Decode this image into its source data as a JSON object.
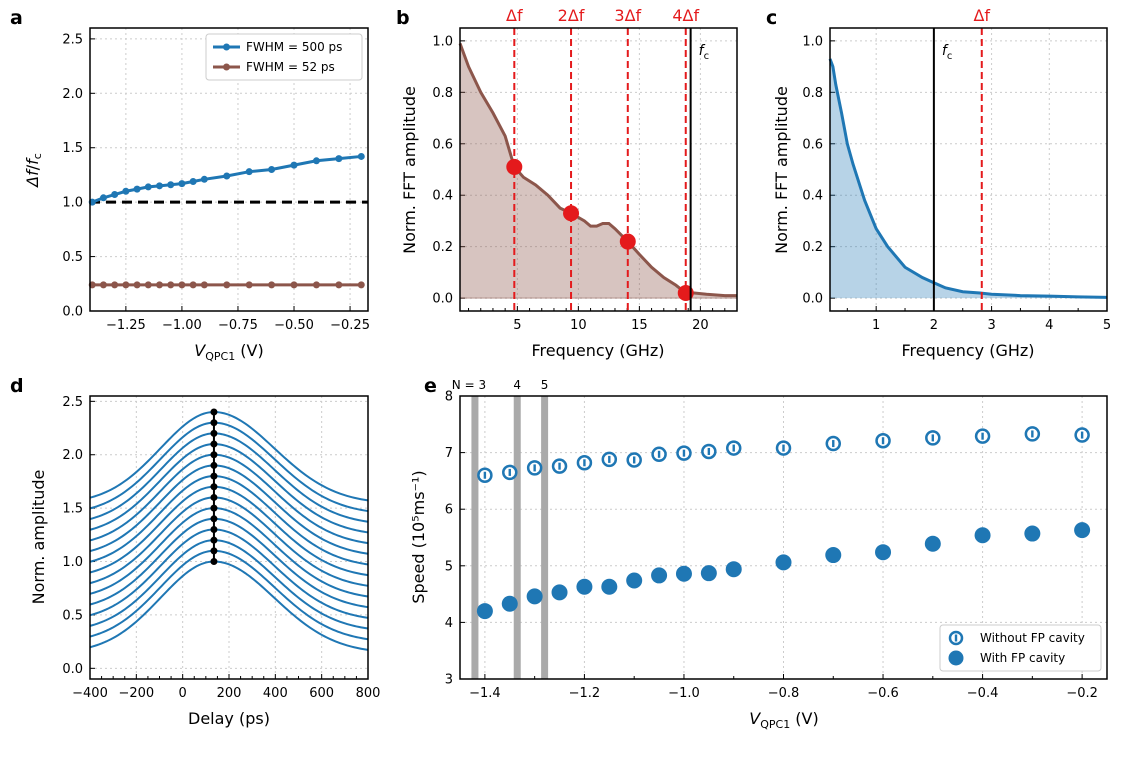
{
  "colors": {
    "blue": "#1f77b4",
    "brown": "#8c564b",
    "red": "#e41a1c",
    "grey": "#aaaaaa",
    "grid": "#cccccc"
  },
  "chart_data": [
    {
      "panel": "a",
      "type": "line",
      "xlabel_main": "V",
      "xlabel_sub": "QPC1",
      "xlabel_unit": " (V)",
      "ylabel": "Δf/f_c",
      "xlim": [
        -1.41,
        -0.17
      ],
      "ylim": [
        0,
        2.6
      ],
      "xticks": [
        -1.25,
        -1.0,
        -0.75,
        -0.5,
        -0.25
      ],
      "xtick_labels": [
        "−1.25",
        "−1.00",
        "−0.75",
        "−0.50",
        "−0.25"
      ],
      "yticks": [
        0,
        0.5,
        1.0,
        1.5,
        2.0,
        2.5
      ],
      "ytick_labels": [
        "0.0",
        "0.5",
        "1.0",
        "1.5",
        "2.0",
        "2.5"
      ],
      "reference_line": 1.0,
      "series": [
        {
          "name": "FWHM = 500 ps",
          "color": "#1f77b4",
          "x": [
            -1.4,
            -1.35,
            -1.3,
            -1.25,
            -1.2,
            -1.15,
            -1.1,
            -1.05,
            -1.0,
            -0.95,
            -0.9,
            -0.8,
            -0.7,
            -0.6,
            -0.5,
            -0.4,
            -0.3,
            -0.2
          ],
          "y": [
            1.0,
            1.04,
            1.07,
            1.1,
            1.12,
            1.14,
            1.15,
            1.16,
            1.17,
            1.19,
            1.21,
            1.24,
            1.28,
            1.3,
            1.34,
            1.38,
            1.4,
            1.42
          ]
        },
        {
          "name": "FWHM = 52 ps",
          "color": "#8c564b",
          "x": [
            -1.4,
            -1.35,
            -1.3,
            -1.25,
            -1.2,
            -1.15,
            -1.1,
            -1.05,
            -1.0,
            -0.95,
            -0.9,
            -0.8,
            -0.7,
            -0.6,
            -0.5,
            -0.4,
            -0.3,
            -0.2
          ],
          "y": [
            0.24,
            0.24,
            0.24,
            0.24,
            0.24,
            0.24,
            0.24,
            0.24,
            0.24,
            0.24,
            0.24,
            0.24,
            0.24,
            0.24,
            0.24,
            0.24,
            0.24,
            0.24
          ]
        }
      ]
    },
    {
      "panel": "b",
      "type": "area",
      "xlabel": "Frequency (GHz)",
      "ylabel": "Norm. FFT amplitude",
      "xlim": [
        0.3,
        23
      ],
      "ylim": [
        -0.05,
        1.05
      ],
      "xticks": [
        5,
        10,
        15,
        20
      ],
      "xtick_labels": [
        "5",
        "10",
        "15",
        "20"
      ],
      "yticks": [
        0,
        0.2,
        0.4,
        0.6,
        0.8,
        1.0
      ],
      "ytick_labels": [
        "0.0",
        "0.2",
        "0.4",
        "0.6",
        "0.8",
        "1.0"
      ],
      "x": [
        0.3,
        1,
        2,
        3,
        4,
        4.75,
        5.5,
        6.5,
        7.5,
        8.5,
        9.4,
        10.5,
        11,
        11.5,
        12,
        12.5,
        13,
        14.05,
        15,
        16,
        17,
        18,
        18.8,
        19.5,
        20.5,
        22,
        23
      ],
      "y": [
        0.99,
        0.9,
        0.8,
        0.72,
        0.63,
        0.51,
        0.47,
        0.44,
        0.4,
        0.35,
        0.33,
        0.3,
        0.28,
        0.28,
        0.29,
        0.29,
        0.27,
        0.22,
        0.17,
        0.12,
        0.08,
        0.05,
        0.02,
        0.02,
        0.015,
        0.01,
        0.01
      ],
      "harmonics": {
        "x": [
          4.75,
          9.4,
          14.05,
          18.8
        ],
        "y": [
          0.51,
          0.33,
          0.22,
          0.02
        ],
        "labels": [
          "Δf",
          "2Δf",
          "3Δf",
          "4Δf"
        ]
      },
      "cutoff": {
        "x": 19.2,
        "label": "f",
        "label_sub": "c"
      }
    },
    {
      "panel": "c",
      "type": "area",
      "xlabel": "Frequency (GHz)",
      "ylabel": "Norm. FFT amplitude",
      "xlim": [
        0.2,
        5
      ],
      "ylim": [
        -0.05,
        1.05
      ],
      "xticks": [
        1,
        2,
        3,
        4,
        5
      ],
      "xtick_labels": [
        "1",
        "2",
        "3",
        "4",
        "5"
      ],
      "yticks": [
        0,
        0.2,
        0.4,
        0.6,
        0.8,
        1.0
      ],
      "ytick_labels": [
        "0.0",
        "0.2",
        "0.4",
        "0.6",
        "0.8",
        "1.0"
      ],
      "x": [
        0.2,
        0.25,
        0.3,
        0.4,
        0.5,
        0.6,
        0.8,
        1.0,
        1.2,
        1.5,
        1.8,
        2.0,
        2.2,
        2.5,
        2.8,
        3.0,
        3.5,
        4.0,
        4.5,
        5.0
      ],
      "y": [
        0.93,
        0.9,
        0.83,
        0.72,
        0.6,
        0.52,
        0.38,
        0.27,
        0.2,
        0.12,
        0.08,
        0.06,
        0.04,
        0.025,
        0.02,
        0.015,
        0.01,
        0.008,
        0.005,
        0.003
      ],
      "cutoff": {
        "x": 2.0,
        "label": "f",
        "label_sub": "c"
      },
      "delta_f": {
        "x": 2.83,
        "label": "Δf"
      }
    },
    {
      "panel": "d",
      "type": "line",
      "xlabel": "Delay (ps)",
      "ylabel": "Norm. amplitude",
      "xlim": [
        -400,
        800
      ],
      "ylim": [
        -0.1,
        2.55
      ],
      "xticks": [
        -400,
        -200,
        0,
        200,
        400,
        600,
        800
      ],
      "xtick_labels": [
        "−400",
        "−200",
        "0",
        "200",
        "400",
        "600",
        "800"
      ],
      "yticks": [
        0,
        0.5,
        1.0,
        1.5,
        2.0,
        2.5
      ],
      "ytick_labels": [
        "0.0",
        "0.5",
        "1.0",
        "1.5",
        "2.0",
        "2.5"
      ],
      "n_traces": 15,
      "offset_step": 0.1,
      "peak_delay": 135,
      "peak_values": [
        1.0,
        1.1,
        1.2,
        1.3,
        1.4,
        1.5,
        1.6,
        1.7,
        1.8,
        1.9,
        2.0,
        2.1,
        2.2,
        2.3,
        2.4
      ]
    },
    {
      "panel": "e",
      "type": "scatter",
      "xlabel_main": "V",
      "xlabel_sub": "QPC1",
      "xlabel_unit": " (V)",
      "ylabel": "Speed (10⁵ms⁻¹)",
      "xlim": [
        -1.45,
        -0.15
      ],
      "ylim": [
        3,
        8
      ],
      "xticks": [
        -1.4,
        -1.2,
        -1.0,
        -0.8,
        -0.6,
        -0.4,
        -0.2
      ],
      "xtick_labels": [
        "−1.4",
        "−1.2",
        "−1.0",
        "−0.8",
        "−0.6",
        "−0.4",
        "−0.2"
      ],
      "yticks": [
        3,
        4,
        5,
        6,
        7,
        8
      ],
      "ytick_labels": [
        "3",
        "4",
        "5",
        "6",
        "7",
        "8"
      ],
      "n_markers": {
        "x": [
          -1.42,
          -1.335,
          -1.28
        ],
        "labels": [
          "N = 3",
          "4",
          "5"
        ]
      },
      "series": [
        {
          "name": "Without FP cavity",
          "marker": "open",
          "x": [
            -1.4,
            -1.35,
            -1.3,
            -1.25,
            -1.2,
            -1.15,
            -1.1,
            -1.05,
            -1.0,
            -0.95,
            -0.9,
            -0.8,
            -0.7,
            -0.6,
            -0.5,
            -0.4,
            -0.3,
            -0.2
          ],
          "y": [
            6.6,
            6.65,
            6.73,
            6.76,
            6.82,
            6.88,
            6.87,
            6.97,
            6.99,
            7.02,
            7.08,
            7.08,
            7.16,
            7.21,
            7.26,
            7.29,
            7.33,
            7.31
          ]
        },
        {
          "name": "With FP cavity",
          "marker": "filled",
          "x": [
            -1.4,
            -1.35,
            -1.3,
            -1.25,
            -1.2,
            -1.15,
            -1.1,
            -1.05,
            -1.0,
            -0.95,
            -0.9,
            -0.8,
            -0.7,
            -0.6,
            -0.5,
            -0.4,
            -0.3,
            -0.2
          ],
          "y": [
            4.2,
            4.33,
            4.46,
            4.53,
            4.63,
            4.63,
            4.74,
            4.83,
            4.86,
            4.87,
            4.94,
            5.06,
            5.19,
            5.24,
            5.39,
            5.54,
            5.57,
            5.63
          ]
        }
      ]
    }
  ]
}
